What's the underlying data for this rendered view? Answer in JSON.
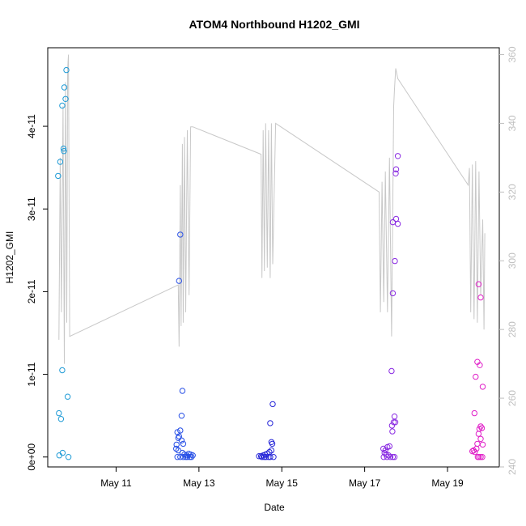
{
  "chart_data": {
    "type": "scatter",
    "title": "ATOM4 Northbound H1202_GMI",
    "xlabel": "Date",
    "ylabel": "H1202_GMI",
    "x_ticks": [
      "May 11",
      "May 13",
      "May 15",
      "May 17",
      "May 19"
    ],
    "x_tick_days": [
      11,
      13,
      15,
      17,
      19
    ],
    "xlim_days": [
      9.35,
      20.25
    ],
    "ylim": [
      -1.2e-12,
      4.95e-11
    ],
    "y_ticks": [
      0,
      1e-11,
      2e-11,
      3e-11,
      4e-11
    ],
    "y_tick_labels": [
      "0e+00",
      "1e-11",
      "2e-11",
      "3e-11",
      "4e-11"
    ],
    "right_axis": {
      "ylim": [
        240,
        362
      ],
      "ticks": [
        240,
        260,
        280,
        300,
        320,
        340,
        360
      ],
      "tick_labels": [
        "240",
        "260",
        "280",
        "300",
        "320",
        "340",
        "360"
      ],
      "color": "#bfbfbf"
    },
    "line_series_color": "#c8c8c8",
    "line_series": [
      [
        9.62,
        277
      ],
      [
        9.65,
        330
      ],
      [
        9.68,
        285
      ],
      [
        9.72,
        345
      ],
      [
        9.75,
        270
      ],
      [
        9.78,
        352
      ],
      [
        9.81,
        282
      ],
      [
        9.83,
        356
      ],
      [
        9.85,
        360
      ],
      [
        9.88,
        278
      ],
      [
        12.5,
        293
      ],
      [
        12.52,
        275
      ],
      [
        12.55,
        322
      ],
      [
        12.57,
        281
      ],
      [
        12.6,
        334
      ],
      [
        12.62,
        282
      ],
      [
        12.65,
        336
      ],
      [
        12.68,
        285
      ],
      [
        12.72,
        338
      ],
      [
        12.76,
        290
      ],
      [
        12.8,
        339
      ],
      [
        12.85,
        339
      ],
      [
        14.5,
        331
      ],
      [
        14.52,
        295
      ],
      [
        14.55,
        338
      ],
      [
        14.58,
        297
      ],
      [
        14.61,
        340
      ],
      [
        14.65,
        298
      ],
      [
        14.68,
        338
      ],
      [
        14.72,
        295
      ],
      [
        14.75,
        340
      ],
      [
        14.78,
        299
      ],
      [
        14.85,
        340
      ],
      [
        17.35,
        320
      ],
      [
        17.38,
        285
      ],
      [
        17.42,
        323
      ],
      [
        17.46,
        288
      ],
      [
        17.5,
        326
      ],
      [
        17.55,
        285
      ],
      [
        17.6,
        330
      ],
      [
        17.65,
        278
      ],
      [
        17.7,
        345
      ],
      [
        17.72,
        350
      ],
      [
        17.75,
        356
      ],
      [
        17.8,
        353
      ],
      [
        19.5,
        322
      ],
      [
        19.53,
        327
      ],
      [
        19.56,
        285
      ],
      [
        19.6,
        328
      ],
      [
        19.64,
        283
      ],
      [
        19.68,
        329
      ],
      [
        19.72,
        282
      ],
      [
        19.76,
        326
      ],
      [
        19.8,
        290
      ],
      [
        19.85,
        312
      ],
      [
        19.88,
        280
      ],
      [
        19.9,
        308
      ]
    ],
    "point_series": [
      {
        "color": "#1f9bd6",
        "points": [
          [
            9.6,
            3.4e-11
          ],
          [
            9.62,
            5.3e-12
          ],
          [
            9.63,
            2e-13
          ],
          [
            9.65,
            3.57e-11
          ],
          [
            9.67,
            4.6e-12
          ],
          [
            9.7,
            4.25e-11
          ],
          [
            9.7,
            1.05e-11
          ],
          [
            9.71,
            5e-13
          ],
          [
            9.73,
            3.73e-11
          ],
          [
            9.74,
            3.7e-11
          ],
          [
            9.75,
            4.47e-11
          ],
          [
            9.78,
            4.33e-11
          ],
          [
            9.8,
            4.68e-11
          ],
          [
            9.83,
            7.3e-12
          ],
          [
            9.85,
            0
          ]
        ]
      },
      {
        "color": "#2850e6",
        "points": [
          [
            12.52,
            2.13e-11
          ],
          [
            12.55,
            2.69e-11
          ],
          [
            12.6,
            8e-12
          ],
          [
            12.58,
            5e-12
          ],
          [
            12.48,
            3e-12
          ],
          [
            12.5,
            2.3e-12
          ],
          [
            12.46,
            1.5e-12
          ],
          [
            12.45,
            1e-12
          ],
          [
            12.52,
            2.5e-12
          ],
          [
            12.55,
            3.2e-12
          ],
          [
            12.58,
            2e-12
          ],
          [
            12.62,
            1.6e-12
          ],
          [
            12.5,
            8e-13
          ],
          [
            12.6,
            5e-13
          ],
          [
            12.65,
            3e-13
          ],
          [
            12.7,
            2e-13
          ],
          [
            12.75,
            4e-13
          ],
          [
            12.8,
            3e-13
          ],
          [
            12.85,
            2e-13
          ],
          [
            12.48,
            0
          ],
          [
            12.55,
            0
          ],
          [
            12.62,
            0
          ],
          [
            12.68,
            0
          ],
          [
            12.72,
            0
          ],
          [
            12.78,
            0
          ],
          [
            12.82,
            0
          ]
        ]
      },
      {
        "color": "#2828d8",
        "points": [
          [
            14.78,
            6.4e-12
          ],
          [
            14.72,
            4.1e-12
          ],
          [
            14.75,
            1.8e-12
          ],
          [
            14.77,
            1.6e-12
          ],
          [
            14.7,
            6e-13
          ],
          [
            14.75,
            8e-13
          ],
          [
            14.65,
            4e-13
          ],
          [
            14.6,
            3e-13
          ],
          [
            14.55,
            2e-13
          ],
          [
            14.5,
            1e-13
          ],
          [
            14.45,
            1e-13
          ],
          [
            14.52,
            0
          ],
          [
            14.58,
            0
          ],
          [
            14.62,
            0
          ],
          [
            14.68,
            0
          ],
          [
            14.72,
            0
          ],
          [
            14.8,
            0
          ]
        ]
      },
      {
        "color": "#8a2be2",
        "points": [
          [
            17.8,
            3.64e-11
          ],
          [
            17.76,
            3.48e-11
          ],
          [
            17.75,
            3.43e-11
          ],
          [
            17.76,
            2.88e-11
          ],
          [
            17.8,
            2.82e-11
          ],
          [
            17.68,
            2.84e-11
          ],
          [
            17.73,
            2.37e-11
          ],
          [
            17.68,
            1.98e-11
          ],
          [
            17.65,
            1.04e-11
          ],
          [
            17.72,
            4.9e-12
          ],
          [
            17.7,
            4.2e-12
          ],
          [
            17.74,
            4.2e-12
          ],
          [
            17.66,
            3.8e-12
          ],
          [
            17.67,
            3.1e-12
          ],
          [
            17.45,
            1e-12
          ],
          [
            17.5,
            8e-13
          ],
          [
            17.55,
            1.2e-12
          ],
          [
            17.6,
            1.3e-12
          ],
          [
            17.48,
            5e-13
          ],
          [
            17.52,
            3e-13
          ],
          [
            17.58,
            2e-13
          ],
          [
            17.46,
            0
          ],
          [
            17.54,
            0
          ],
          [
            17.62,
            0
          ],
          [
            17.68,
            0
          ],
          [
            17.72,
            0
          ]
        ]
      },
      {
        "color": "#e020c8",
        "points": [
          [
            19.75,
            2.09e-11
          ],
          [
            19.8,
            1.93e-11
          ],
          [
            19.72,
            1.15e-11
          ],
          [
            19.78,
            1.11e-11
          ],
          [
            19.68,
            9.7e-12
          ],
          [
            19.85,
            8.5e-12
          ],
          [
            19.65,
            5.3e-12
          ],
          [
            19.8,
            3.7e-12
          ],
          [
            19.77,
            3.4e-12
          ],
          [
            19.83,
            3.5e-12
          ],
          [
            19.75,
            2.8e-12
          ],
          [
            19.8,
            2.2e-12
          ],
          [
            19.72,
            1.6e-12
          ],
          [
            19.85,
            1.5e-12
          ],
          [
            19.6,
            7e-13
          ],
          [
            19.63,
            8e-13
          ],
          [
            19.66,
            6e-13
          ],
          [
            19.7,
            1e-12
          ],
          [
            19.73,
            0
          ],
          [
            19.76,
            0
          ],
          [
            19.8,
            0
          ],
          [
            19.84,
            0
          ]
        ]
      }
    ]
  }
}
